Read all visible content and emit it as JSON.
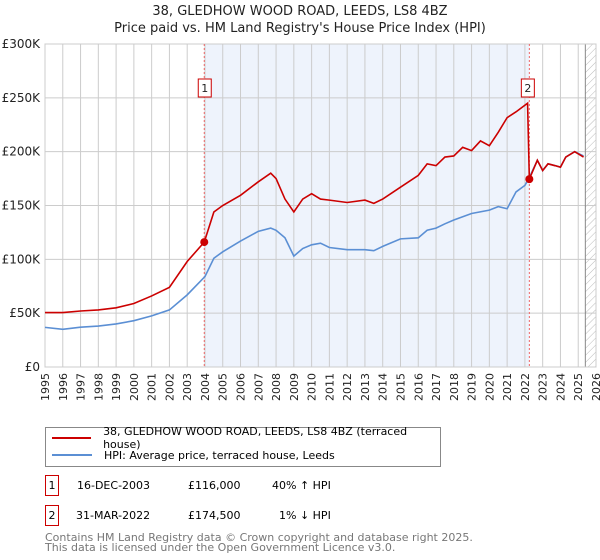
{
  "title": "38, GLEDHOW WOOD ROAD, LEEDS, LS8 4BZ",
  "subtitle": "Price paid vs. HM Land Registry's House Price Index (HPI)",
  "colors": {
    "property": "#cc0000",
    "hpi": "#5b8fd4",
    "shade": "#eef3fc"
  },
  "chart_data": {
    "type": "line",
    "xlim": [
      1995,
      2026
    ],
    "ylim": [
      0,
      300000
    ],
    "y_ticks": [
      {
        "v": 0,
        "label": "£0"
      },
      {
        "v": 50000,
        "label": "£50K"
      },
      {
        "v": 100000,
        "label": "£100K"
      },
      {
        "v": 150000,
        "label": "£150K"
      },
      {
        "v": 200000,
        "label": "£200K"
      },
      {
        "v": 250000,
        "label": "£250K"
      },
      {
        "v": 300000,
        "label": "£300K"
      }
    ],
    "x_ticks": [
      "1995",
      "1996",
      "1997",
      "1998",
      "1999",
      "2000",
      "2001",
      "2002",
      "2003",
      "2004",
      "2005",
      "2006",
      "2007",
      "2008",
      "2009",
      "2010",
      "2011",
      "2012",
      "2013",
      "2014",
      "2015",
      "2016",
      "2017",
      "2018",
      "2019",
      "2020",
      "2021",
      "2022",
      "2023",
      "2024",
      "2025",
      "2026"
    ],
    "series": [
      {
        "name": "38, GLEDHOW WOOD ROAD, LEEDS, LS8 4BZ (terraced house)",
        "color": "#cc0000",
        "points": [
          [
            1995,
            50600
          ],
          [
            1996,
            50600
          ],
          [
            1997,
            52000
          ],
          [
            1998,
            53000
          ],
          [
            1999,
            55000
          ],
          [
            2000,
            59000
          ],
          [
            2001,
            66000
          ],
          [
            2002,
            74000
          ],
          [
            2003,
            98000
          ],
          [
            2003.96,
            116000
          ],
          [
            2004.5,
            144000
          ],
          [
            2005,
            150000
          ],
          [
            2006,
            159500
          ],
          [
            2007,
            172000
          ],
          [
            2007.7,
            180000
          ],
          [
            2008,
            175000
          ],
          [
            2008.5,
            156000
          ],
          [
            2009,
            144000
          ],
          [
            2009.5,
            156000
          ],
          [
            2010,
            161000
          ],
          [
            2010.5,
            156000
          ],
          [
            2011,
            155000
          ],
          [
            2012,
            152800
          ],
          [
            2013,
            155000
          ],
          [
            2013.5,
            152000
          ],
          [
            2014,
            156000
          ],
          [
            2015,
            167000
          ],
          [
            2016,
            178000
          ],
          [
            2016.5,
            188700
          ],
          [
            2017,
            187000
          ],
          [
            2017.5,
            195000
          ],
          [
            2018,
            196000
          ],
          [
            2018.5,
            204000
          ],
          [
            2019,
            201000
          ],
          [
            2019.5,
            210000
          ],
          [
            2020,
            205500
          ],
          [
            2020.5,
            218000
          ],
          [
            2021,
            231600
          ],
          [
            2021.5,
            237000
          ],
          [
            2022.15,
            245000
          ],
          [
            2022.25,
            174500
          ],
          [
            2022.7,
            192000
          ],
          [
            2023,
            182500
          ],
          [
            2023.3,
            188700
          ],
          [
            2023.7,
            187000
          ],
          [
            2024,
            185600
          ],
          [
            2024.3,
            195000
          ],
          [
            2024.8,
            200000
          ],
          [
            2025.3,
            195000
          ]
        ]
      },
      {
        "name": "HPI: Average price, terraced house, Leeds",
        "color": "#5b8fd4",
        "points": [
          [
            1995,
            36800
          ],
          [
            1996,
            35000
          ],
          [
            1997,
            37000
          ],
          [
            1998,
            38000
          ],
          [
            1999,
            40000
          ],
          [
            2000,
            43000
          ],
          [
            2001,
            47500
          ],
          [
            2002,
            53000
          ],
          [
            2003,
            67000
          ],
          [
            2004,
            84000
          ],
          [
            2004.5,
            101000
          ],
          [
            2005,
            107000
          ],
          [
            2006,
            117000
          ],
          [
            2007,
            126000
          ],
          [
            2007.7,
            129000
          ],
          [
            2008,
            127000
          ],
          [
            2008.5,
            120000
          ],
          [
            2009,
            103000
          ],
          [
            2009.5,
            110000
          ],
          [
            2010,
            113500
          ],
          [
            2010.5,
            115000
          ],
          [
            2011,
            111000
          ],
          [
            2012,
            109000
          ],
          [
            2013,
            109000
          ],
          [
            2013.5,
            108000
          ],
          [
            2014,
            112000
          ],
          [
            2015,
            119000
          ],
          [
            2016,
            120000
          ],
          [
            2016.5,
            127000
          ],
          [
            2017,
            129000
          ],
          [
            2017.5,
            133000
          ],
          [
            2018,
            136500
          ],
          [
            2019,
            142600
          ],
          [
            2020,
            145700
          ],
          [
            2020.5,
            149000
          ],
          [
            2021,
            147000
          ],
          [
            2021.5,
            162600
          ],
          [
            2022,
            168700
          ],
          [
            2022.25,
            176000
          ],
          [
            2022.7,
            192000
          ],
          [
            2023,
            182500
          ],
          [
            2023.3,
            188700
          ],
          [
            2023.7,
            187000
          ],
          [
            2024,
            185600
          ],
          [
            2024.3,
            195000
          ],
          [
            2024.8,
            200000
          ],
          [
            2025.3,
            196000
          ]
        ]
      }
    ],
    "annotations": [
      {
        "label": "1",
        "x": 2003.96,
        "y": 116000
      },
      {
        "label": "2",
        "x": 2022.25,
        "y": 174500
      }
    ],
    "shaded_range": [
      2003.96,
      2022.25
    ],
    "hatched_from": 2025.4
  },
  "legend": {
    "property": "38, GLEDHOW WOOD ROAD, LEEDS, LS8 4BZ (terraced house)",
    "hpi": "HPI: Average price, terraced house, Leeds"
  },
  "transactions": [
    {
      "num": "1",
      "date": "16-DEC-2003",
      "price": "£116,000",
      "hpi": "40% ↑ HPI"
    },
    {
      "num": "2",
      "date": "31-MAR-2022",
      "price": "£174,500",
      "hpi": "1% ↓ HPI"
    }
  ],
  "footer": [
    "Contains HM Land Registry data © Crown copyright and database right 2025.",
    "This data is licensed under the Open Government Licence v3.0."
  ]
}
